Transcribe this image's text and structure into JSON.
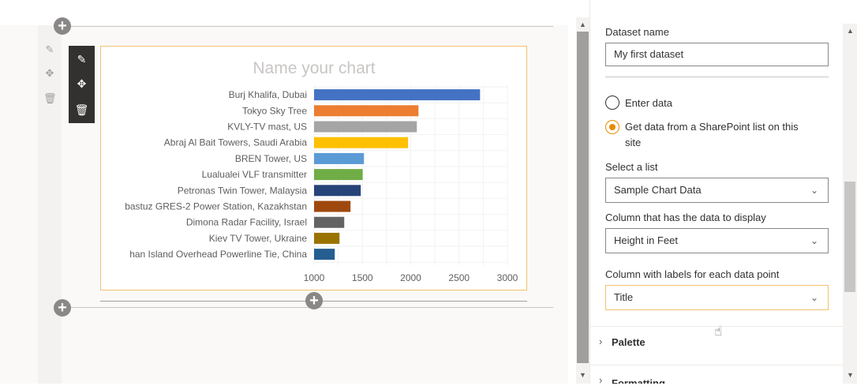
{
  "chart": {
    "title": "Name your chart",
    "type": "bar",
    "colors": [
      "#4472c4",
      "#ed7d31",
      "#a5a5a5",
      "#ffc000",
      "#5b9bd5",
      "#70ad47",
      "#264478",
      "#9e480e",
      "#636363",
      "#997300",
      "#255e91"
    ]
  },
  "chart_data": {
    "type": "bar",
    "orientation": "horizontal",
    "title": "Name your chart",
    "categories": [
      "Burj Khalifa, Dubai",
      "Tokyo Sky Tree",
      "KVLY-TV mast, US",
      "Abraj Al Bait Towers, Saudi Arabia",
      "BREN Tower, US",
      "Lualualei VLF transmitter",
      "Petronas Twin Tower, Malaysia",
      "bastuz GRES-2 Power Station, Kazakhstan",
      "Dimona Radar Facility, Israel",
      "Kiev TV Tower, Ukraine",
      "han Island Overhead Powerline Tie, China"
    ],
    "values": [
      2717,
      2080,
      2063,
      1972,
      1516,
      1503,
      1483,
      1377,
      1312,
      1263,
      1214
    ],
    "xticks": [
      "1000",
      "1500",
      "2000",
      "2500",
      "3000"
    ],
    "xlim": [
      1000,
      3000
    ],
    "grid": true
  },
  "pane": {
    "dataset_label": "Dataset name",
    "dataset_value": "My first dataset",
    "radio_enter": "Enter data",
    "radio_sharepoint_line1": "Get data from a SharePoint list on this",
    "radio_sharepoint_line2": "site",
    "select_list_label": "Select a list",
    "select_list_value": "Sample Chart Data",
    "column_data_label": "Column that has the data to display",
    "column_data_value": "Height in Feet",
    "column_labels_label": "Column with labels for each data point",
    "column_labels_value": "Title",
    "palette_label": "Palette",
    "next_group_label": "Formatting"
  },
  "icons": {
    "edit": "pencil-icon",
    "move": "move-icon",
    "delete": "trash-icon",
    "add": "plus-icon",
    "chevron": "chevron-down-icon",
    "expand": "chevron-right-icon"
  }
}
